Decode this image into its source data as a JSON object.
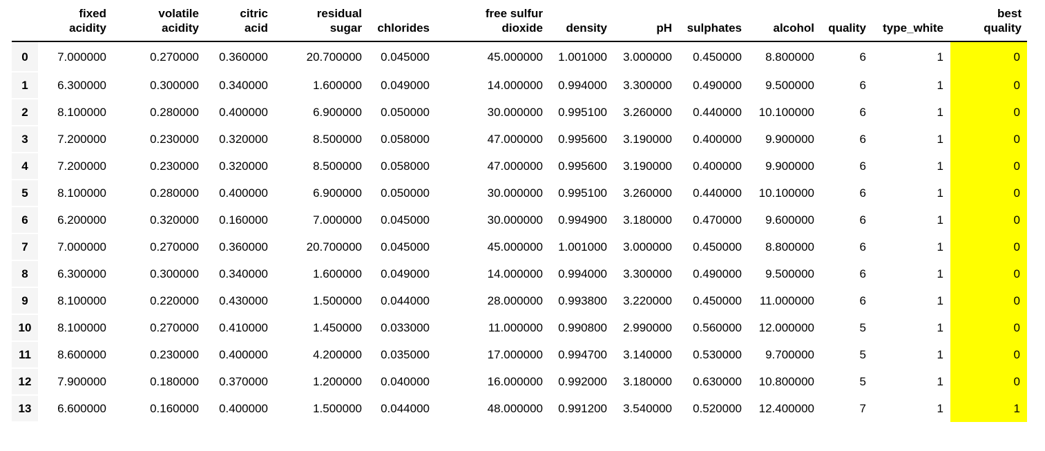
{
  "highlight_color": "#ffff00",
  "table": {
    "columns": [
      {
        "key": "fixed_acidity",
        "lines": [
          "fixed",
          "acidity"
        ]
      },
      {
        "key": "volatile_acidity",
        "lines": [
          "volatile",
          "acidity"
        ]
      },
      {
        "key": "citric_acid",
        "lines": [
          "citric",
          "acid"
        ]
      },
      {
        "key": "residual_sugar",
        "lines": [
          "residual",
          "sugar"
        ]
      },
      {
        "key": "chlorides",
        "lines": [
          "chlorides"
        ]
      },
      {
        "key": "free_sulfur_dioxide",
        "lines": [
          "free sulfur",
          "dioxide"
        ]
      },
      {
        "key": "density",
        "lines": [
          "density"
        ]
      },
      {
        "key": "pH",
        "lines": [
          "pH"
        ]
      },
      {
        "key": "sulphates",
        "lines": [
          "sulphates"
        ]
      },
      {
        "key": "alcohol",
        "lines": [
          "alcohol"
        ]
      },
      {
        "key": "quality",
        "lines": [
          "quality"
        ]
      },
      {
        "key": "type_white",
        "lines": [
          "type_white"
        ]
      },
      {
        "key": "best_quality",
        "lines": [
          "best",
          "quality"
        ]
      }
    ],
    "highlighted_column": "best_quality",
    "rows": [
      {
        "index": "0",
        "cells": [
          "7.000000",
          "0.270000",
          "0.360000",
          "20.700000",
          "0.045000",
          "45.000000",
          "1.001000",
          "3.000000",
          "0.450000",
          "8.800000",
          "6",
          "1",
          "0"
        ]
      },
      {
        "index": "1",
        "cells": [
          "6.300000",
          "0.300000",
          "0.340000",
          "1.600000",
          "0.049000",
          "14.000000",
          "0.994000",
          "3.300000",
          "0.490000",
          "9.500000",
          "6",
          "1",
          "0"
        ]
      },
      {
        "index": "2",
        "cells": [
          "8.100000",
          "0.280000",
          "0.400000",
          "6.900000",
          "0.050000",
          "30.000000",
          "0.995100",
          "3.260000",
          "0.440000",
          "10.100000",
          "6",
          "1",
          "0"
        ]
      },
      {
        "index": "3",
        "cells": [
          "7.200000",
          "0.230000",
          "0.320000",
          "8.500000",
          "0.058000",
          "47.000000",
          "0.995600",
          "3.190000",
          "0.400000",
          "9.900000",
          "6",
          "1",
          "0"
        ]
      },
      {
        "index": "4",
        "cells": [
          "7.200000",
          "0.230000",
          "0.320000",
          "8.500000",
          "0.058000",
          "47.000000",
          "0.995600",
          "3.190000",
          "0.400000",
          "9.900000",
          "6",
          "1",
          "0"
        ]
      },
      {
        "index": "5",
        "cells": [
          "8.100000",
          "0.280000",
          "0.400000",
          "6.900000",
          "0.050000",
          "30.000000",
          "0.995100",
          "3.260000",
          "0.440000",
          "10.100000",
          "6",
          "1",
          "0"
        ]
      },
      {
        "index": "6",
        "cells": [
          "6.200000",
          "0.320000",
          "0.160000",
          "7.000000",
          "0.045000",
          "30.000000",
          "0.994900",
          "3.180000",
          "0.470000",
          "9.600000",
          "6",
          "1",
          "0"
        ]
      },
      {
        "index": "7",
        "cells": [
          "7.000000",
          "0.270000",
          "0.360000",
          "20.700000",
          "0.045000",
          "45.000000",
          "1.001000",
          "3.000000",
          "0.450000",
          "8.800000",
          "6",
          "1",
          "0"
        ]
      },
      {
        "index": "8",
        "cells": [
          "6.300000",
          "0.300000",
          "0.340000",
          "1.600000",
          "0.049000",
          "14.000000",
          "0.994000",
          "3.300000",
          "0.490000",
          "9.500000",
          "6",
          "1",
          "0"
        ]
      },
      {
        "index": "9",
        "cells": [
          "8.100000",
          "0.220000",
          "0.430000",
          "1.500000",
          "0.044000",
          "28.000000",
          "0.993800",
          "3.220000",
          "0.450000",
          "11.000000",
          "6",
          "1",
          "0"
        ]
      },
      {
        "index": "10",
        "cells": [
          "8.100000",
          "0.270000",
          "0.410000",
          "1.450000",
          "0.033000",
          "11.000000",
          "0.990800",
          "2.990000",
          "0.560000",
          "12.000000",
          "5",
          "1",
          "0"
        ]
      },
      {
        "index": "11",
        "cells": [
          "8.600000",
          "0.230000",
          "0.400000",
          "4.200000",
          "0.035000",
          "17.000000",
          "0.994700",
          "3.140000",
          "0.530000",
          "9.700000",
          "5",
          "1",
          "0"
        ]
      },
      {
        "index": "12",
        "cells": [
          "7.900000",
          "0.180000",
          "0.370000",
          "1.200000",
          "0.040000",
          "16.000000",
          "0.992000",
          "3.180000",
          "0.630000",
          "10.800000",
          "5",
          "1",
          "0"
        ]
      },
      {
        "index": "13",
        "cells": [
          "6.600000",
          "0.160000",
          "0.400000",
          "1.500000",
          "0.044000",
          "48.000000",
          "0.991200",
          "3.540000",
          "0.520000",
          "12.400000",
          "7",
          "1",
          "1"
        ]
      }
    ]
  }
}
